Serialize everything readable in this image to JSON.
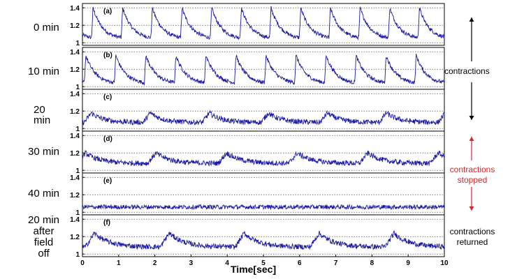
{
  "chart_data": {
    "type": "line",
    "xlabel": "Time[sec]",
    "ylabel": "",
    "xlim": [
      0,
      10
    ],
    "ylim": [
      0.97,
      1.45
    ],
    "x_ticks": [
      "0",
      "1",
      "2",
      "3",
      "4",
      "5",
      "6",
      "7",
      "8",
      "9",
      "10"
    ],
    "y_ticks": [
      "1",
      "1.2",
      "1.4"
    ],
    "panels": [
      {
        "tag": "(a)",
        "time": "0 min",
        "kind": "contracting",
        "period_sec": 0.82,
        "phase_sec": 0.25,
        "baseline": 1.04,
        "peak": 1.4
      },
      {
        "tag": "(b)",
        "time": "10 min",
        "kind": "contracting",
        "period_sec": 0.83,
        "phase_sec": 0.05,
        "baseline": 1.03,
        "peak": 1.36
      },
      {
        "tag": "(c)",
        "time": "20 min",
        "kind": "weak",
        "period_sec": 1.63,
        "phase_sec": 1.68,
        "baseline": 1.07,
        "peak": 1.18
      },
      {
        "tag": "(d)",
        "time": "30 min",
        "kind": "weak",
        "period_sec": 1.95,
        "phase_sec": 1.8,
        "baseline": 1.08,
        "peak": 1.2
      },
      {
        "tag": "(e)",
        "time": "40 min",
        "kind": "stopped",
        "period_sec": 0,
        "phase_sec": 0,
        "baseline": 1.06,
        "peak": 1.06
      },
      {
        "tag": "(f)",
        "time": "20 min after field off",
        "kind": "weak",
        "period_sec": 2.07,
        "phase_sec": 2.15,
        "baseline": 1.08,
        "peak": 1.24
      }
    ],
    "annotations": {
      "contractions": "contractions",
      "stopped_line1": "contractions",
      "stopped_line2": "stopped",
      "returned_line1": "contractions",
      "returned_line2": "returned"
    }
  },
  "colors": {
    "trace": "#1a1aa6",
    "frame": "#000000",
    "grid": "#555555",
    "red_note": "#d9242a"
  },
  "left_labels": {
    "p0": [
      "0 min"
    ],
    "p1": [
      "10 min"
    ],
    "p2": [
      "20",
      "min"
    ],
    "p3": [
      "30 min"
    ],
    "p4": [
      "40 min"
    ],
    "p5": [
      "20 min",
      "after",
      "field",
      "off"
    ]
  }
}
